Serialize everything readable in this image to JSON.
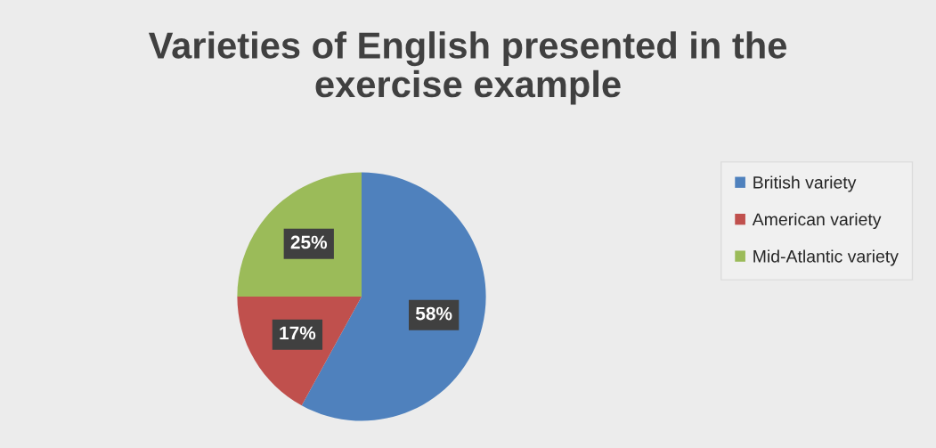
{
  "chart_data": {
    "type": "pie",
    "title": "Varieties of English presented in the\nexercise example",
    "categories": [
      "British variety",
      "American variety",
      "Mid-Atlantic variety"
    ],
    "values": [
      58,
      17,
      25
    ],
    "colors": [
      "#4f81bd",
      "#c0504d",
      "#9bbb59"
    ],
    "value_labels": [
      "58%",
      "17%",
      "25%"
    ],
    "legend": "right"
  }
}
